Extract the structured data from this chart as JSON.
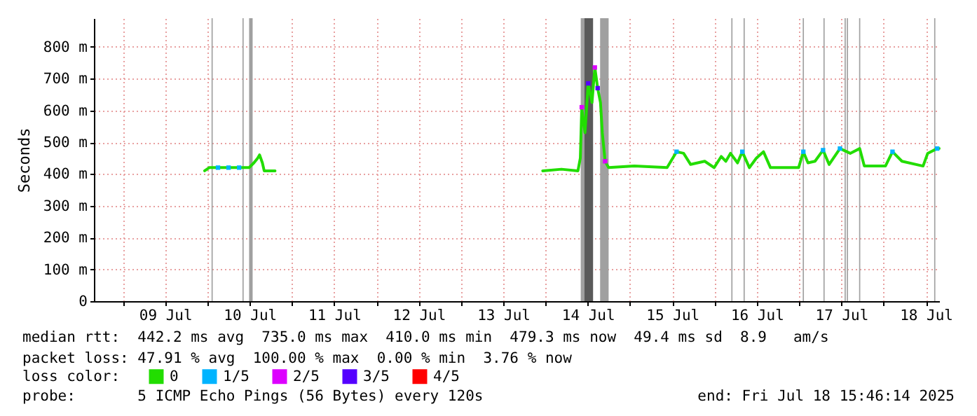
{
  "chart_data": {
    "type": "line",
    "ylabel": "Seconds",
    "legend_title": "loss color:",
    "legend": "bottom",
    "grid": true,
    "xlim": [
      "2025-07-08T15:46",
      "2025-07-18T15:46"
    ],
    "xticks": [
      {
        "value": "2025-07-09T00:00",
        "label": null
      },
      {
        "value": "2025-07-09T12:00",
        "label": "09 Jul"
      },
      {
        "value": "2025-07-10T00:00",
        "label": null
      },
      {
        "value": "2025-07-10T12:00",
        "label": "10 Jul"
      },
      {
        "value": "2025-07-11T00:00",
        "label": null
      },
      {
        "value": "2025-07-11T12:00",
        "label": "11 Jul"
      },
      {
        "value": "2025-07-12T00:00",
        "label": null
      },
      {
        "value": "2025-07-12T12:00",
        "label": "12 Jul"
      },
      {
        "value": "2025-07-13T00:00",
        "label": null
      },
      {
        "value": "2025-07-13T12:00",
        "label": "13 Jul"
      },
      {
        "value": "2025-07-14T00:00",
        "label": null
      },
      {
        "value": "2025-07-14T12:00",
        "label": "14 Jul"
      },
      {
        "value": "2025-07-15T00:00",
        "label": null
      },
      {
        "value": "2025-07-15T12:00",
        "label": "15 Jul"
      },
      {
        "value": "2025-07-16T00:00",
        "label": null
      },
      {
        "value": "2025-07-16T12:00",
        "label": "16 Jul"
      },
      {
        "value": "2025-07-17T00:00",
        "label": null
      },
      {
        "value": "2025-07-17T12:00",
        "label": "17 Jul"
      },
      {
        "value": "2025-07-18T00:00",
        "label": null
      },
      {
        "value": "2025-07-18T12:00",
        "label": "18 Jul"
      }
    ],
    "ylim": [
      0,
      890
    ],
    "yticks": [
      0,
      {
        "value": 100,
        "label": "100 m"
      },
      {
        "value": 200,
        "label": "200 m"
      },
      {
        "value": 300,
        "label": "300 m"
      },
      {
        "value": 400,
        "label": "400 m"
      },
      {
        "value": 500,
        "label": "500 m"
      },
      {
        "value": 600,
        "label": "600 m"
      },
      {
        "value": 700,
        "label": "700 m"
      },
      {
        "value": 800,
        "label": "800 m"
      }
    ],
    "series": [
      {
        "name": "0",
        "color": "#22dd00",
        "x": [
          "2025-07-09T23:12",
          "2025-07-10T00:31",
          "2025-07-10T11:50",
          "2025-07-10T13:12",
          "2025-07-10T14:17",
          "2025-07-10T14:48",
          "2025-07-10T15:36",
          "2025-07-10T16:07",
          "2025-07-10T19:12",
          "2025-07-12T00:00",
          "2025-07-13T23:12",
          "2025-07-14T04:31",
          "2025-07-14T09:12",
          "2025-07-14T09:53",
          "2025-07-14T10:17",
          "2025-07-14T11:12",
          "2025-07-14T12:07",
          "2025-07-14T13:12",
          "2025-07-14T14:00",
          "2025-07-14T14:48",
          "2025-07-14T15:36",
          "2025-07-14T16:07",
          "2025-07-14T16:55",
          "2025-07-14T17:55",
          "2025-07-15T01:12",
          "2025-07-15T10:31",
          "2025-07-15T13:12",
          "2025-07-15T15:12",
          "2025-07-15T17:12",
          "2025-07-15T21:12",
          "2025-07-15T23:52",
          "2025-07-16T01:53",
          "2025-07-16T03:12",
          "2025-07-16T04:31",
          "2025-07-16T06:31",
          "2025-07-16T07:52",
          "2025-07-16T09:53",
          "2025-07-16T11:52",
          "2025-07-16T13:53",
          "2025-07-16T15:52",
          "2025-07-16T23:52",
          "2025-07-17T01:12",
          "2025-07-17T02:31",
          "2025-07-17T04:31",
          "2025-07-17T06:48",
          "2025-07-17T08:31",
          "2025-07-17T11:36",
          "2025-07-17T14:31",
          "2025-07-17T17:12",
          "2025-07-17T18:31",
          "2025-07-18T00:31",
          "2025-07-18T02:31",
          "2025-07-18T05:12",
          "2025-07-18T11:12",
          "2025-07-18T12:31",
          "2025-07-18T15:12",
          "2025-07-18T15:46"
        ],
        "values": [
          410,
          420,
          420,
          435,
          450,
          460,
          435,
          410,
          410,
          null,
          410,
          415,
          410,
          450,
          610,
          530,
          685,
          625,
          735,
          670,
          625,
          530,
          440,
          420,
          425,
          420,
          470,
          465,
          430,
          440,
          420,
          455,
          440,
          465,
          435,
          470,
          420,
          450,
          470,
          420,
          420,
          470,
          435,
          440,
          475,
          430,
          480,
          465,
          480,
          425,
          425,
          470,
          440,
          425,
          465,
          480,
          480
        ]
      },
      {
        "name": "1/5",
        "type": "scatter",
        "color": "#00b4ff",
        "x": [
          "2025-07-10T03:00",
          "2025-07-10T06:00",
          "2025-07-10T09:00",
          "2025-07-15T13:12",
          "2025-07-16T07:52",
          "2025-07-17T01:12",
          "2025-07-17T06:48",
          "2025-07-17T11:36",
          "2025-07-18T02:31",
          "2025-07-18T15:12"
        ],
        "values": [
          420,
          420,
          420,
          470,
          470,
          470,
          475,
          480,
          470,
          480
        ]
      },
      {
        "name": "2/5",
        "type": "scatter",
        "color": "#dd00ff",
        "x": [
          "2025-07-14T10:17",
          "2025-07-14T14:00",
          "2025-07-14T16:55"
        ],
        "values": [
          610,
          735,
          440
        ]
      },
      {
        "name": "3/5",
        "type": "scatter",
        "color": "#5500ff",
        "x": [
          "2025-07-14T12:07",
          "2025-07-14T14:48"
        ],
        "values": [
          685,
          670
        ]
      },
      {
        "name": "4/5",
        "type": "scatter",
        "color": "#ff0000"
      }
    ],
    "bands": [
      {
        "axis": "x",
        "from": "2025-07-10T01:10",
        "to": "2025-07-10T01:30",
        "color": "#a0a0a0"
      },
      {
        "axis": "x",
        "from": "2025-07-10T09:57",
        "to": "2025-07-10T10:17",
        "color": "#a0a0a0"
      },
      {
        "axis": "x",
        "from": "2025-07-10T11:50",
        "to": "2025-07-10T12:50",
        "color": "#a0a0a0"
      },
      {
        "axis": "x",
        "from": "2025-07-14T10:00",
        "to": "2025-07-14T11:00",
        "color": "#a0a0a0"
      },
      {
        "axis": "x",
        "from": "2025-07-14T11:00",
        "to": "2025-07-14T13:30",
        "color": "#5a5a5a"
      },
      {
        "axis": "x",
        "from": "2025-07-14T15:30",
        "to": "2025-07-14T17:55",
        "color": "#a0a0a0"
      },
      {
        "axis": "x",
        "from": "2025-07-16T04:45",
        "to": "2025-07-16T05:05",
        "color": "#a0a0a0"
      },
      {
        "axis": "x",
        "from": "2025-07-16T08:14",
        "to": "2025-07-16T08:34",
        "color": "#a0a0a0"
      },
      {
        "axis": "x",
        "from": "2025-07-17T01:02",
        "to": "2025-07-17T01:22",
        "color": "#a0a0a0"
      },
      {
        "axis": "x",
        "from": "2025-07-17T06:55",
        "to": "2025-07-17T07:15",
        "color": "#a0a0a0"
      },
      {
        "axis": "x",
        "from": "2025-07-17T12:55",
        "to": "2025-07-17T13:15",
        "color": "#a0a0a0"
      },
      {
        "axis": "x",
        "from": "2025-07-17T13:33",
        "to": "2025-07-17T13:53",
        "color": "#a0a0a0"
      },
      {
        "axis": "x",
        "from": "2025-07-17T17:02",
        "to": "2025-07-17T17:22",
        "color": "#a0a0a0"
      },
      {
        "axis": "x",
        "from": "2025-07-18T14:21",
        "to": "2025-07-18T14:41",
        "color": "#a0a0a0"
      }
    ],
    "annotations": [
      "median rtt:  442.2 ms avg  735.0 ms max  410.0 ms min  479.3 ms now  49.4 ms sd  8.9   am/s",
      "packet loss: 47.91 % avg  100.00 % max  0.00 % min  3.76 % now",
      "probe:       5 ICMP Echo Pings (56 Bytes) every 120s",
      "end: Fri Jul 18 15:46:14 2025"
    ]
  }
}
